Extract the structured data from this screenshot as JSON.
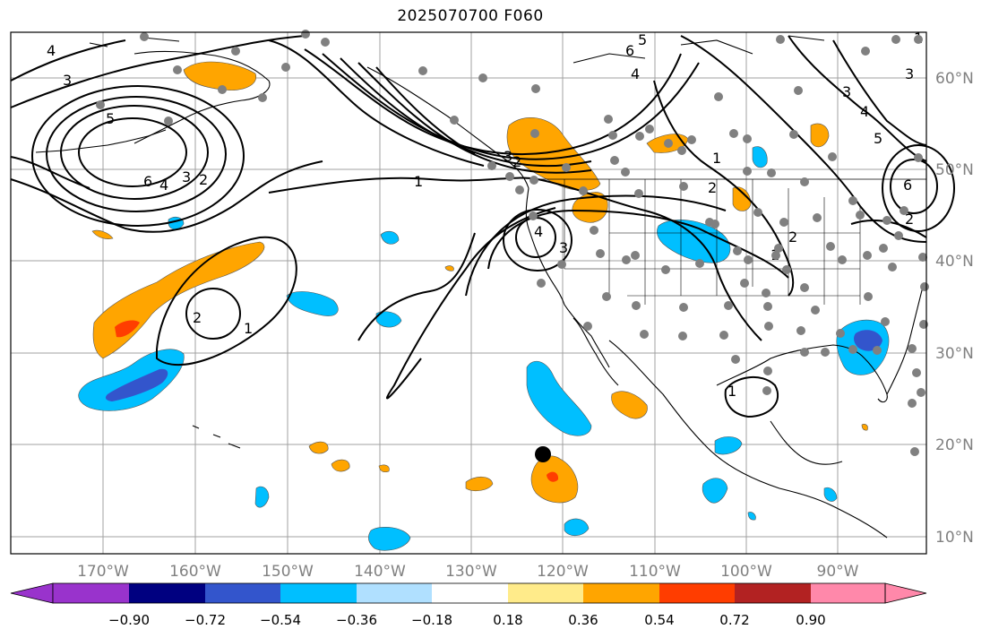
{
  "title": "2025070700 F060",
  "longitude_labels": [
    "170°W",
    "160°W",
    "150°W",
    "140°W",
    "130°W",
    "120°W",
    "110°W",
    "100°W",
    "90°W"
  ],
  "latitude_labels": [
    "60°N",
    "50°N",
    "40°N",
    "30°N",
    "20°N",
    "10°N"
  ],
  "colorbar": {
    "ticks": [
      "−0.90",
      "−0.72",
      "−0.54",
      "−0.36",
      "−0.18",
      "0.18",
      "0.36",
      "0.54",
      "0.72",
      "0.90"
    ],
    "colors": [
      "#9933cc",
      "#000080",
      "#3355cc",
      "#00bfff",
      "#b0e0ff",
      "#ffffff",
      "#ffeb8a",
      "#ffa500",
      "#ff3d00",
      "#b22222",
      "#ff88aa"
    ]
  },
  "colors": {
    "land_border": "#000000",
    "grid": "#a0a0a0",
    "positive_fill": "#ffa500",
    "positive_strong": "#ff3d00",
    "negative_fill": "#00bfff",
    "negative_strong": "#3355cc",
    "station_dot": "#808080",
    "marker": "#000000"
  },
  "contour_labels": [
    "4",
    "3",
    "5",
    "6",
    "4",
    "3",
    "2",
    "1",
    "2",
    "1",
    "6",
    "5",
    "4",
    "3",
    "2",
    "1",
    "3",
    "4",
    "2",
    "1",
    "1",
    "2",
    "3",
    "4",
    "5",
    "6",
    "3",
    "2",
    "1"
  ]
}
